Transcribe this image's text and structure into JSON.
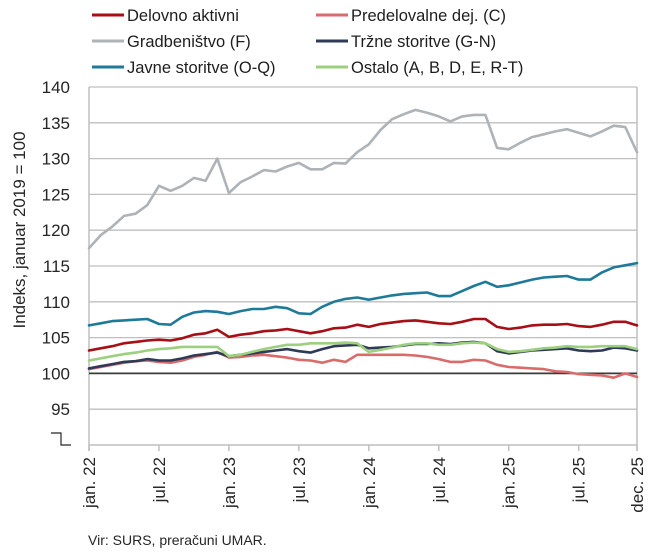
{
  "chart_data": {
    "type": "line",
    "title": "",
    "xlabel": "",
    "ylabel": "Indeks, januar 2019 = 100",
    "ylim": [
      90,
      140
    ],
    "yticks": [
      140,
      135,
      130,
      125,
      120,
      115,
      110,
      105,
      100,
      95
    ],
    "axis_break": true,
    "grid": true,
    "legend_position": "top",
    "x_tick_labels": [
      {
        "index": 0,
        "label": "jan. 22"
      },
      {
        "index": 6,
        "label": "jul. 22"
      },
      {
        "index": 12,
        "label": "jan. 23"
      },
      {
        "index": 18,
        "label": "jul. 23"
      },
      {
        "index": 24,
        "label": "jan. 24"
      },
      {
        "index": 30,
        "label": "jul. 24"
      },
      {
        "index": 36,
        "label": "jan. 25"
      },
      {
        "index": 42,
        "label": "jul. 25"
      },
      {
        "index": 47,
        "label": "dec. 25"
      }
    ],
    "x_count": 48,
    "reference_line": 100,
    "series": [
      {
        "name": "Delovno aktivni",
        "color": "#a50f15",
        "values": [
          103.2,
          103.5,
          103.8,
          104.2,
          104.4,
          104.6,
          104.7,
          104.6,
          104.9,
          105.4,
          105.6,
          106.1,
          105.1,
          105.4,
          105.6,
          105.9,
          106.0,
          106.2,
          105.9,
          105.6,
          105.9,
          106.3,
          106.4,
          106.8,
          106.5,
          106.9,
          107.1,
          107.3,
          107.4,
          107.2,
          107.0,
          106.9,
          107.2,
          107.6,
          107.6,
          106.5,
          106.2,
          106.4,
          106.7,
          106.8,
          106.8,
          106.9,
          106.6,
          106.5,
          106.8,
          107.2,
          107.2,
          106.7
        ]
      },
      {
        "name": "Predelovalne dej. (C)",
        "color": "#d96b6b",
        "values": [
          100.6,
          100.9,
          101.2,
          101.5,
          101.7,
          101.8,
          101.6,
          101.5,
          101.8,
          102.3,
          102.6,
          103.0,
          102.2,
          102.3,
          102.5,
          102.6,
          102.4,
          102.2,
          101.9,
          101.8,
          101.5,
          101.9,
          101.6,
          102.6,
          102.6,
          102.6,
          102.6,
          102.6,
          102.5,
          102.3,
          102.0,
          101.6,
          101.6,
          101.9,
          101.8,
          101.2,
          100.9,
          100.8,
          100.7,
          100.6,
          100.3,
          100.2,
          99.9,
          99.8,
          99.7,
          99.4,
          100.0,
          99.5
        ]
      },
      {
        "name": "Gradbeništvo (F)",
        "color": "#aeb3b7",
        "values": [
          117.5,
          119.3,
          120.5,
          122.0,
          122.3,
          123.5,
          126.2,
          125.5,
          126.2,
          127.3,
          126.9,
          130.0,
          125.2,
          126.7,
          127.5,
          128.4,
          128.2,
          128.9,
          129.4,
          128.5,
          128.5,
          129.4,
          129.3,
          130.9,
          132.0,
          134.0,
          135.5,
          136.2,
          136.8,
          136.4,
          135.9,
          135.2,
          135.9,
          136.1,
          136.1,
          131.5,
          131.3,
          132.2,
          133.0,
          133.4,
          133.8,
          134.1,
          133.6,
          133.1,
          133.8,
          134.6,
          134.4,
          130.9
        ]
      },
      {
        "name": "Tržne storitve (G-N)",
        "color": "#2f3a56",
        "values": [
          100.7,
          101.0,
          101.3,
          101.6,
          101.7,
          102.0,
          101.8,
          101.8,
          102.1,
          102.5,
          102.7,
          102.9,
          102.4,
          102.6,
          102.8,
          103.0,
          103.2,
          103.4,
          103.1,
          102.9,
          103.4,
          103.8,
          103.9,
          104.0,
          103.5,
          103.6,
          103.7,
          103.9,
          104.1,
          104.1,
          104.2,
          104.1,
          104.3,
          104.4,
          104.2,
          103.1,
          102.8,
          103.0,
          103.2,
          103.3,
          103.4,
          103.5,
          103.2,
          103.1,
          103.2,
          103.6,
          103.5,
          103.2
        ]
      },
      {
        "name": "Javne storitve (O-Q)",
        "color": "#1f7a99",
        "values": [
          106.7,
          107.0,
          107.3,
          107.4,
          107.5,
          107.6,
          106.9,
          106.8,
          107.9,
          108.5,
          108.7,
          108.6,
          108.3,
          108.7,
          109.0,
          109.0,
          109.3,
          109.1,
          108.4,
          108.3,
          109.3,
          110.0,
          110.4,
          110.6,
          110.3,
          110.6,
          110.9,
          111.1,
          111.2,
          111.3,
          110.8,
          110.8,
          111.5,
          112.2,
          112.8,
          112.1,
          112.3,
          112.7,
          113.1,
          113.4,
          113.5,
          113.6,
          113.1,
          113.1,
          114.1,
          114.8,
          115.1,
          115.4
        ]
      },
      {
        "name": "Ostalo (A, B, D, E, R-T)",
        "color": "#9ccf7e",
        "values": [
          101.8,
          102.1,
          102.4,
          102.7,
          102.9,
          103.2,
          103.4,
          103.5,
          103.7,
          103.7,
          103.7,
          103.7,
          102.4,
          102.6,
          103.0,
          103.4,
          103.7,
          104.0,
          104.0,
          104.2,
          104.2,
          104.2,
          104.3,
          104.2,
          103.0,
          103.3,
          103.6,
          104.0,
          104.2,
          104.2,
          104.0,
          104.0,
          104.2,
          104.3,
          104.2,
          103.4,
          103.0,
          103.1,
          103.3,
          103.5,
          103.6,
          103.8,
          103.7,
          103.7,
          103.8,
          103.8,
          103.8,
          103.4
        ]
      }
    ]
  },
  "legend": {
    "items": [
      {
        "label": "Delovno aktivni",
        "color": "#a50f15"
      },
      {
        "label": "Predelovalne dej. (C)",
        "color": "#d96b6b"
      },
      {
        "label": "Gradbeništvo (F)",
        "color": "#aeb3b7"
      },
      {
        "label": "Tržne storitve (G-N)",
        "color": "#2f3a56"
      },
      {
        "label": "Javne storitve (O-Q)",
        "color": "#1f7a99"
      },
      {
        "label": "Ostalo (A, B, D, E, R-T)",
        "color": "#9ccf7e"
      }
    ]
  },
  "source": "Vir: SURS, preračuni UMAR.",
  "colors": {
    "grid": "#bfbfbf",
    "axis": "#bfbfbf",
    "reference_line": "#3a3a3a",
    "text": "#262626"
  }
}
